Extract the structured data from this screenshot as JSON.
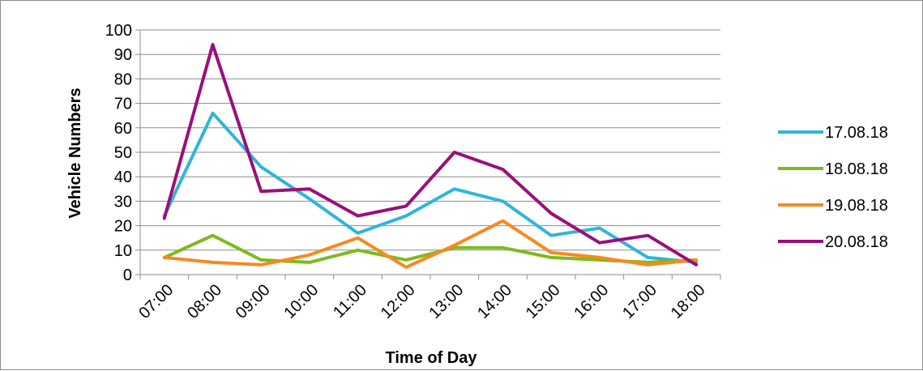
{
  "chart_data": {
    "type": "line",
    "title": "",
    "xlabel": "Time of Day",
    "ylabel": "Vehicle Numbers",
    "ylim": [
      0,
      100
    ],
    "yticks": [
      "0",
      "10",
      "20",
      "30",
      "40",
      "50",
      "60",
      "70",
      "80",
      "90",
      "100"
    ],
    "categories": [
      "07:00",
      "08:00",
      "09:00",
      "10:00",
      "11:00",
      "12:00",
      "13:00",
      "14:00",
      "15:00",
      "16:00",
      "17:00",
      "18:00"
    ],
    "grid": true,
    "legend_position": "right",
    "series": [
      {
        "name": "17.08.18",
        "color": "#2eb6d9",
        "values": [
          24,
          66,
          44,
          31,
          17,
          24,
          35,
          30,
          16,
          19,
          7,
          5
        ]
      },
      {
        "name": "18.08.18",
        "color": "#7dba1f",
        "values": [
          7,
          16,
          6,
          5,
          10,
          6,
          11,
          11,
          7,
          6,
          5,
          6
        ]
      },
      {
        "name": "19.08.18",
        "color": "#f7891f",
        "values": [
          7,
          5,
          4,
          8,
          15,
          3,
          12,
          22,
          9,
          7,
          4,
          6
        ]
      },
      {
        "name": "20.08.18",
        "color": "#9b0f7a",
        "values": [
          23,
          94,
          34,
          35,
          24,
          28,
          50,
          43,
          25,
          13,
          16,
          4
        ]
      }
    ]
  }
}
